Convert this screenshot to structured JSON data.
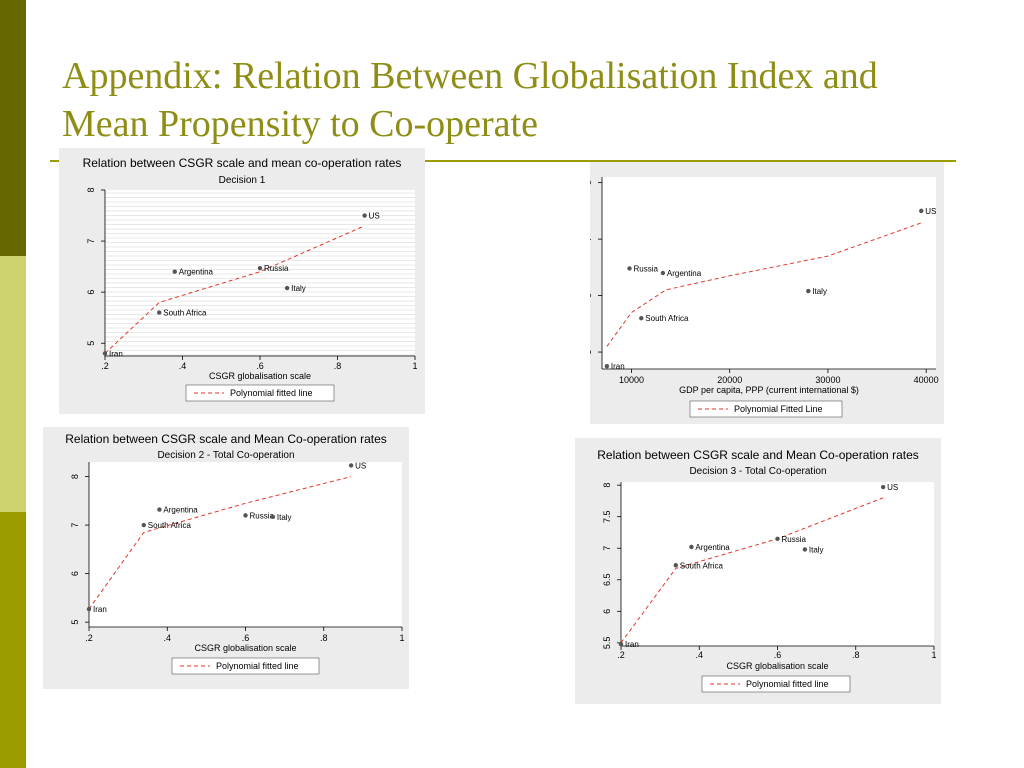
{
  "slide": {
    "title": "Appendix: Relation Between Globalisation Index and Mean Propensity to Co-operate",
    "colors": {
      "title": "#8e8e16",
      "rule": "#9c9c00",
      "panel_bg": "#ececec",
      "fit_line": "#e0382c",
      "points": "#555555"
    }
  },
  "chart_data": [
    {
      "type": "scatter",
      "title": "Relation between CSGR scale and mean co-operation rates",
      "subtitle": "Decision 1",
      "xlabel": "CSGR globalisation scale",
      "ylabel": "",
      "xlim": [
        0.2,
        1
      ],
      "ylim": [
        4.75,
        8
      ],
      "xticks": [
        0.2,
        0.4,
        0.6,
        0.8,
        1
      ],
      "xtick_labels": [
        ".2",
        ".4",
        ".6",
        ".8",
        "1"
      ],
      "yticks": [
        5,
        6,
        7,
        8
      ],
      "ytick_labels": [
        "5",
        "6",
        "7",
        "8"
      ],
      "grid": true,
      "points": [
        {
          "label": "Iran",
          "x": 0.2,
          "y": 4.8
        },
        {
          "label": "South Africa",
          "x": 0.34,
          "y": 5.6
        },
        {
          "label": "Argentina",
          "x": 0.38,
          "y": 6.4
        },
        {
          "label": "Russia",
          "x": 0.6,
          "y": 6.47
        },
        {
          "label": "Italy",
          "x": 0.67,
          "y": 6.08
        },
        {
          "label": "US",
          "x": 0.87,
          "y": 7.5
        }
      ],
      "fit": [
        {
          "x": 0.2,
          "y": 4.8
        },
        {
          "x": 0.34,
          "y": 5.8
        },
        {
          "x": 0.6,
          "y": 6.4
        },
        {
          "x": 0.87,
          "y": 7.3
        }
      ],
      "legend": "Polynomial fitted line"
    },
    {
      "type": "scatter",
      "title": "",
      "subtitle": "",
      "xlabel": "GDP per capita, PPP (current international $)",
      "ylabel": "",
      "xlim": [
        7000,
        41000
      ],
      "ylim": [
        4.7,
        8.1
      ],
      "xticks": [
        10000,
        20000,
        30000,
        40000
      ],
      "xtick_labels": [
        "10000",
        "20000",
        "30000",
        "40000"
      ],
      "yticks": [
        5,
        6,
        7,
        8
      ],
      "ytick_labels": [
        "5",
        "6",
        "7",
        "8"
      ],
      "grid": false,
      "points": [
        {
          "label": "Iran",
          "x": 7500,
          "y": 4.75
        },
        {
          "label": "South Africa",
          "x": 11000,
          "y": 5.6
        },
        {
          "label": "Russia",
          "x": 9800,
          "y": 6.48
        },
        {
          "label": "Argentina",
          "x": 13200,
          "y": 6.4
        },
        {
          "label": "Italy",
          "x": 28000,
          "y": 6.08
        },
        {
          "label": "US",
          "x": 39500,
          "y": 7.5
        }
      ],
      "fit": [
        {
          "x": 7500,
          "y": 5.1
        },
        {
          "x": 10000,
          "y": 5.7
        },
        {
          "x": 13500,
          "y": 6.1
        },
        {
          "x": 20000,
          "y": 6.35
        },
        {
          "x": 30000,
          "y": 6.7
        },
        {
          "x": 39700,
          "y": 7.3
        }
      ],
      "legend": "Polynomial Fitted Line"
    },
    {
      "type": "scatter",
      "title": "Relation between CSGR scale and Mean Co-operation rates",
      "subtitle": "Decision 2 - Total Co-operation",
      "xlabel": "CSGR globalisation scale",
      "ylabel": "",
      "xlim": [
        0.2,
        1
      ],
      "ylim": [
        4.9,
        8.3
      ],
      "xticks": [
        0.2,
        0.4,
        0.6,
        0.8,
        1
      ],
      "xtick_labels": [
        ".2",
        ".4",
        ".6",
        ".8",
        "1"
      ],
      "yticks": [
        5,
        6,
        7,
        8
      ],
      "ytick_labels": [
        "5",
        "6",
        "7",
        "8"
      ],
      "grid": false,
      "points": [
        {
          "label": "Iran",
          "x": 0.2,
          "y": 5.27
        },
        {
          "label": "South Africa",
          "x": 0.34,
          "y": 7.0
        },
        {
          "label": "Argentina",
          "x": 0.38,
          "y": 7.32
        },
        {
          "label": "Russia",
          "x": 0.6,
          "y": 7.2
        },
        {
          "label": "Italy",
          "x": 0.67,
          "y": 7.17
        },
        {
          "label": "US",
          "x": 0.87,
          "y": 8.23
        }
      ],
      "fit": [
        {
          "x": 0.2,
          "y": 5.27
        },
        {
          "x": 0.34,
          "y": 6.85
        },
        {
          "x": 0.6,
          "y": 7.45
        },
        {
          "x": 0.87,
          "y": 8.0
        }
      ],
      "legend": "Polynomial fitted line"
    },
    {
      "type": "scatter",
      "title": "Relation between CSGR scale and Mean Co-operation rates",
      "subtitle": "Decision 3 - Total Co-operation",
      "xlabel": "CSGR globalisation scale",
      "ylabel": "",
      "xlim": [
        0.2,
        1
      ],
      "ylim": [
        5.45,
        8.05
      ],
      "xticks": [
        0.2,
        0.4,
        0.6,
        0.8,
        1
      ],
      "xtick_labels": [
        ".2",
        ".4",
        ".6",
        ".8",
        "1"
      ],
      "yticks": [
        5.5,
        6,
        6.5,
        7,
        7.5,
        8
      ],
      "ytick_labels": [
        "5.5",
        "6",
        "6.5",
        "7",
        "7.5",
        "8"
      ],
      "grid": false,
      "points": [
        {
          "label": "Iran",
          "x": 0.2,
          "y": 5.48
        },
        {
          "label": "South Africa",
          "x": 0.34,
          "y": 6.73
        },
        {
          "label": "Argentina",
          "x": 0.38,
          "y": 7.02
        },
        {
          "label": "Russia",
          "x": 0.6,
          "y": 7.15
        },
        {
          "label": "Italy",
          "x": 0.67,
          "y": 6.98
        },
        {
          "label": "US",
          "x": 0.87,
          "y": 7.97
        }
      ],
      "fit": [
        {
          "x": 0.2,
          "y": 5.5
        },
        {
          "x": 0.34,
          "y": 6.68
        },
        {
          "x": 0.6,
          "y": 7.15
        },
        {
          "x": 0.87,
          "y": 7.8
        }
      ],
      "legend": "Polynomial fitted line"
    }
  ]
}
